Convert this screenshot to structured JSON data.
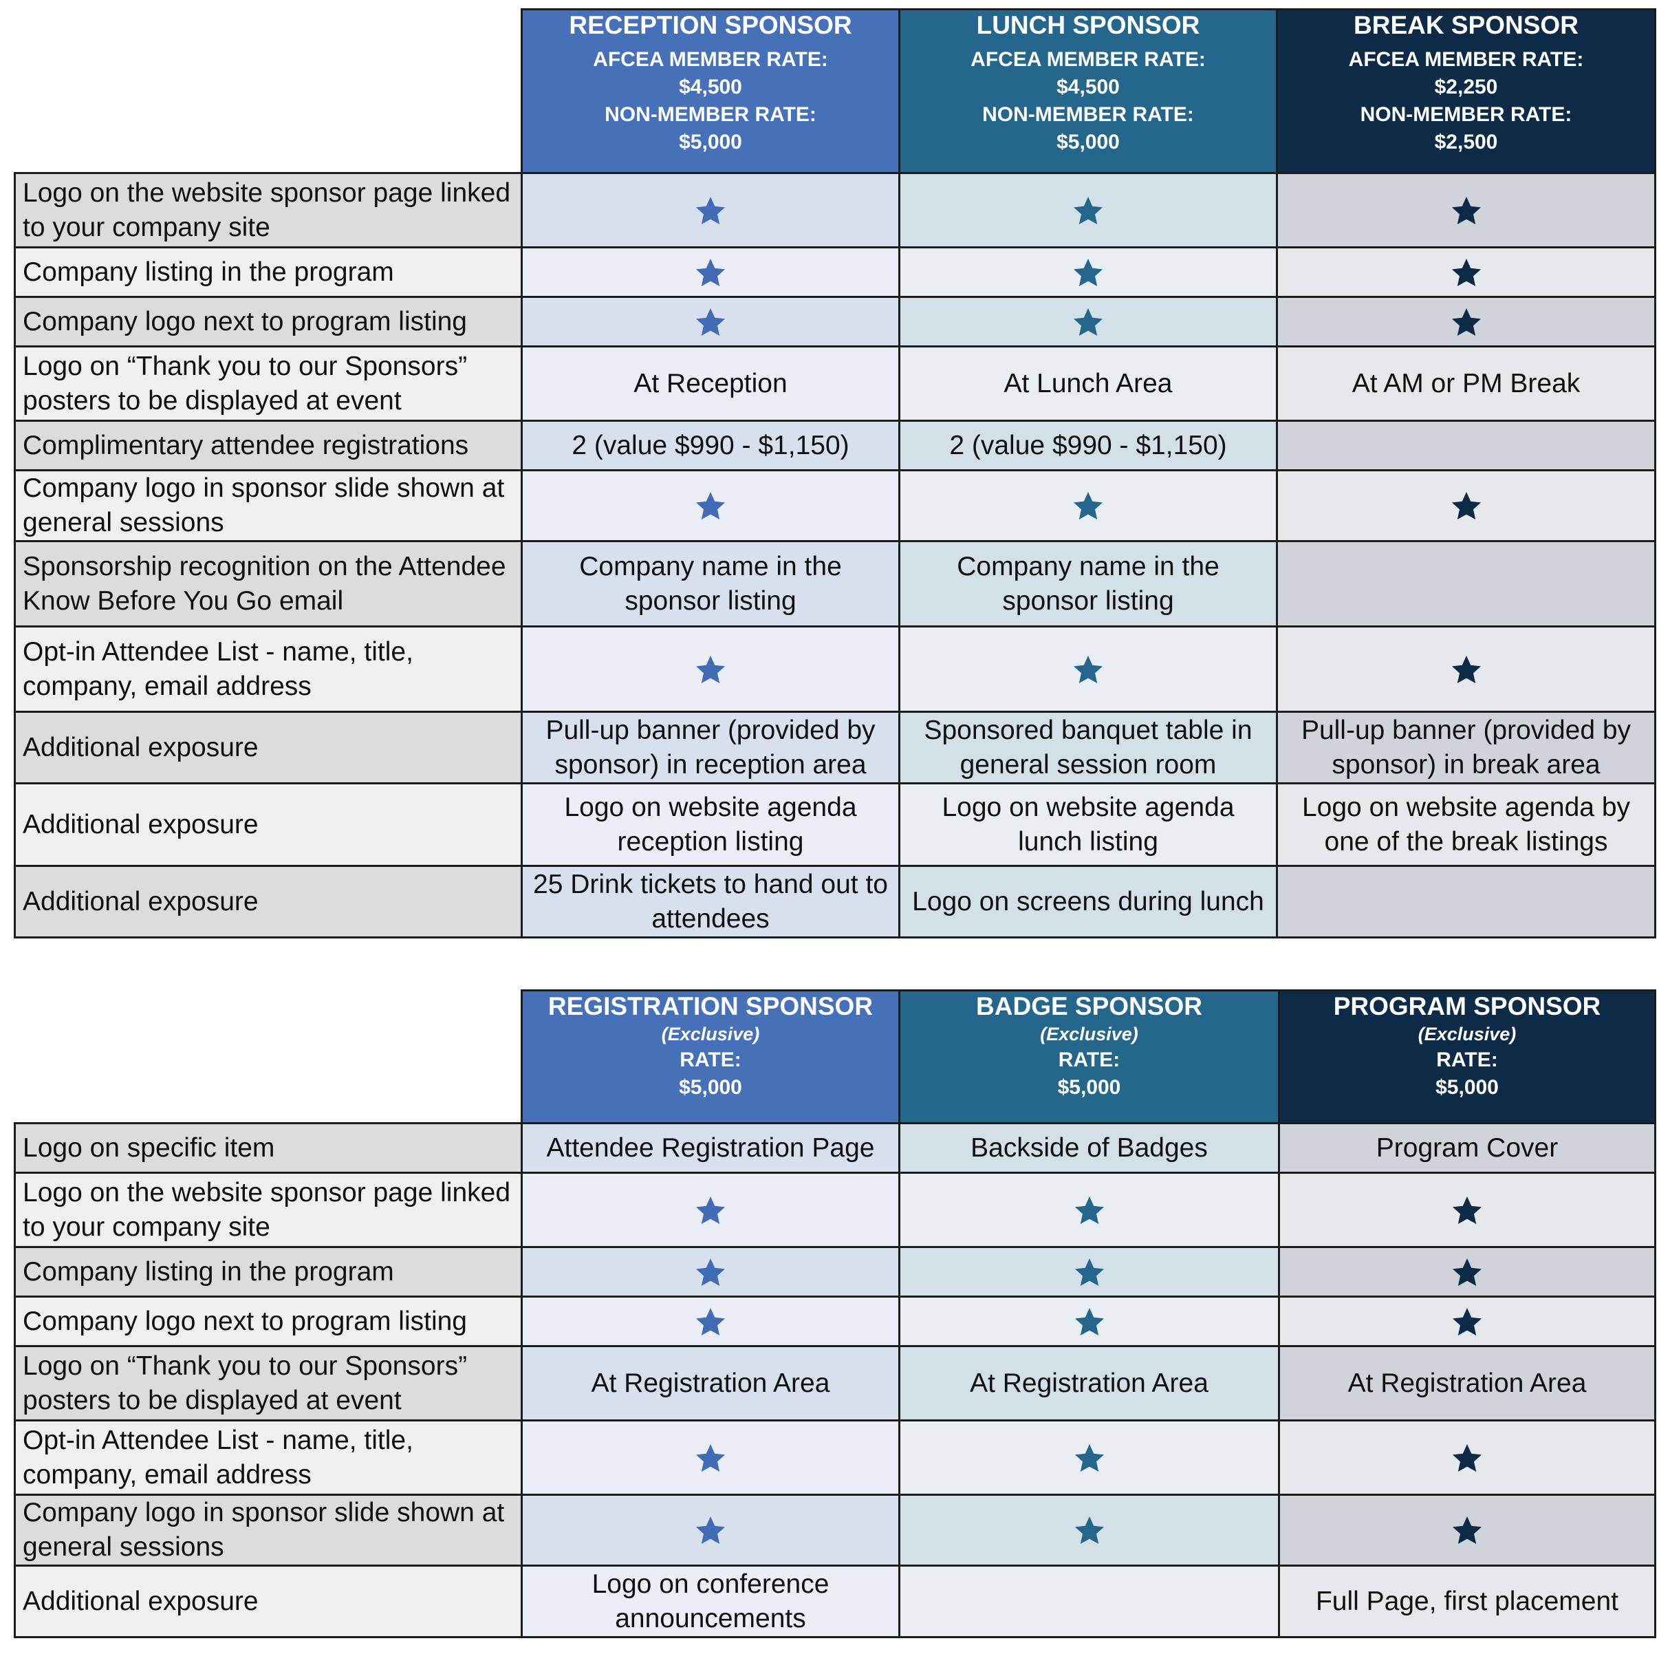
{
  "table1": {
    "columns": [
      {
        "title": "RECEPTION SPONSOR",
        "member_rate_label": "AFCEA MEMBER RATE:",
        "member_rate": "$4,500",
        "nonmember_rate_label": "NON-MEMBER RATE:",
        "nonmember_rate": "$5,000",
        "star_color": "#3f6cb5"
      },
      {
        "title": "LUNCH SPONSOR",
        "member_rate_label": "AFCEA MEMBER RATE:",
        "member_rate": "$4,500",
        "nonmember_rate_label": "NON-MEMBER RATE:",
        "nonmember_rate": "$5,000",
        "star_color": "#24668c"
      },
      {
        "title": "BREAK SPONSOR",
        "member_rate_label": "AFCEA MEMBER RATE:",
        "member_rate": "$2,250",
        "nonmember_rate_label": "NON-MEMBER RATE:",
        "nonmember_rate": "$2,500",
        "star_color": "#0d2a47"
      }
    ],
    "rows": [
      {
        "label": "Logo on the website sponsor page linked to your company site",
        "values": [
          "star",
          "star",
          "star"
        ]
      },
      {
        "label": "Company listing in the program",
        "values": [
          "star",
          "star",
          "star"
        ]
      },
      {
        "label": "Company logo next to program listing",
        "values": [
          "star",
          "star",
          "star"
        ]
      },
      {
        "label": "Logo on “Thank you to our Sponsors” posters to be displayed at event",
        "values": [
          "At Reception",
          "At Lunch Area",
          "At AM or PM Break"
        ]
      },
      {
        "label": "Complimentary attendee registrations",
        "values": [
          "2 (value $990 - $1,150)",
          "2 (value $990 - $1,150)",
          ""
        ]
      },
      {
        "label": "Company logo in sponsor slide shown at general sessions",
        "values": [
          "star",
          "star",
          "star"
        ]
      },
      {
        "label": "Sponsorship recognition on the Attendee Know Before You Go email",
        "values": [
          "Company name in the sponsor listing",
          "Company name in the sponsor listing",
          ""
        ]
      },
      {
        "label": "Opt-in Attendee List - name, title, company, email address",
        "values": [
          "star",
          "star",
          "star"
        ]
      },
      {
        "label": "Additional exposure",
        "values": [
          "Pull-up banner (provided by sponsor) in reception area",
          "Sponsored banquet table in general session room",
          "Pull-up banner (provided by sponsor) in break area"
        ]
      },
      {
        "label": "Additional exposure",
        "values": [
          "Logo on website agenda reception listing",
          "Logo on website agenda lunch listing",
          "Logo on website agenda by one of the break listings"
        ]
      },
      {
        "label": "Additional exposure",
        "values": [
          "25 Drink tickets to hand out to attendees",
          "Logo on screens during lunch",
          ""
        ]
      }
    ]
  },
  "table2": {
    "columns": [
      {
        "title": "REGISTRATION SPONSOR",
        "exclusive": "(Exclusive)",
        "rate_label": "RATE:",
        "rate": "$5,000",
        "star_color": "#3f6cb5"
      },
      {
        "title": "BADGE SPONSOR",
        "exclusive": "(Exclusive)",
        "rate_label": "RATE:",
        "rate": "$5,000",
        "star_color": "#24668c"
      },
      {
        "title": "PROGRAM SPONSOR",
        "exclusive": "(Exclusive)",
        "rate_label": "RATE:",
        "rate": "$5,000",
        "star_color": "#0d2a47"
      }
    ],
    "rows": [
      {
        "label": "Logo on specific item",
        "values": [
          "Attendee Registration Page",
          "Backside of Badges",
          "Program Cover"
        ]
      },
      {
        "label": "Logo on the website sponsor page linked to your company site",
        "values": [
          "star",
          "star",
          "star"
        ]
      },
      {
        "label": "Company listing in the program",
        "values": [
          "star",
          "star",
          "star"
        ]
      },
      {
        "label": "Company logo next to program listing",
        "values": [
          "star",
          "star",
          "star"
        ]
      },
      {
        "label": "Logo on “Thank you to our Sponsors” posters to be displayed at event",
        "values": [
          "At Registration Area",
          "At Registration Area",
          "At Registration Area"
        ]
      },
      {
        "label": "Opt-in Attendee List - name, title, company, email address",
        "values": [
          "star",
          "star",
          "star"
        ]
      },
      {
        "label": "Company logo in sponsor slide shown at general sessions",
        "values": [
          "star",
          "star",
          "star"
        ]
      },
      {
        "label": "Additional exposure",
        "values": [
          "Logo on conference announcements",
          "",
          "Full Page, first placement"
        ]
      }
    ]
  }
}
